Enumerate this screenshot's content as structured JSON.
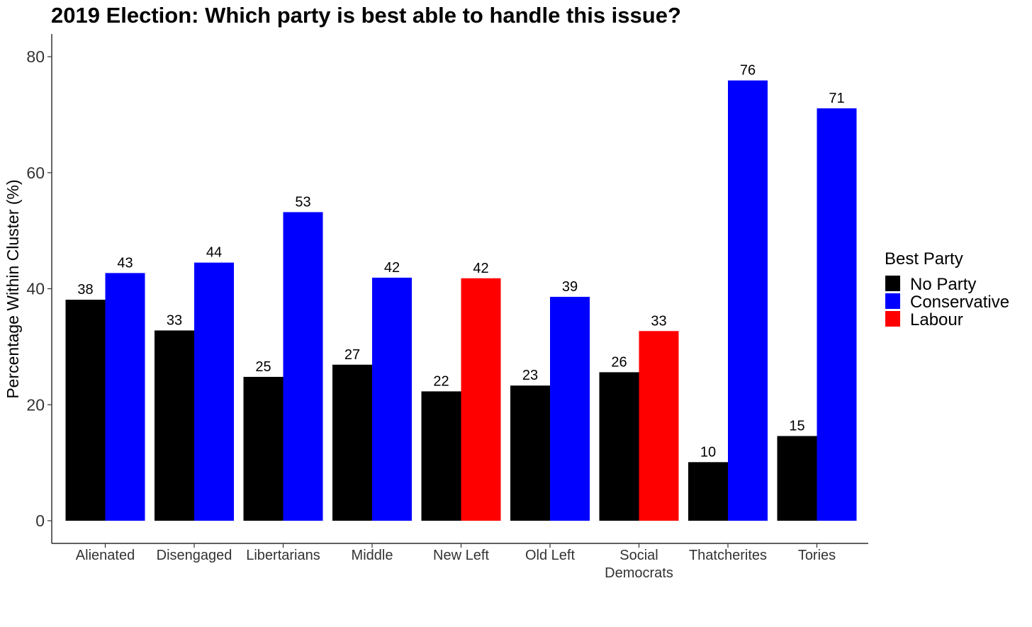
{
  "chart_data": {
    "type": "bar",
    "title": "2019 Election: Which party is best able to handle this issue?",
    "xlabel": "",
    "ylabel": "Percentage Within Cluster (%)",
    "ylim": [
      0,
      84
    ],
    "yticks": [
      "0",
      "20",
      "40",
      "60",
      "80"
    ],
    "grid": false,
    "legend_position": "right",
    "legend_title": "Best Party",
    "colors": {
      "No Party": "#000000",
      "Conservative": "#0000ff",
      "Labour": "#ff0000"
    },
    "legend": [
      {
        "name": "No Party",
        "color": "#000000"
      },
      {
        "name": "Conservative",
        "color": "#0000ff"
      },
      {
        "name": "Labour",
        "color": "#ff0000"
      }
    ],
    "categories": [
      "Alienated",
      "Disengaged",
      "Libertarians",
      "Middle",
      "New Left",
      "Old Left",
      "Social Democrats",
      "Thatcherites",
      "Tories"
    ],
    "category_lines": [
      [
        "Alienated"
      ],
      [
        "Disengaged"
      ],
      [
        "Libertarians"
      ],
      [
        "Middle"
      ],
      [
        "New Left"
      ],
      [
        "Old Left"
      ],
      [
        "Social",
        "Democrats"
      ],
      [
        "Thatcherites"
      ],
      [
        "Tories"
      ]
    ],
    "groups": [
      {
        "category": "Alienated",
        "bars": [
          {
            "party": "No Party",
            "value": 38.1,
            "label": "38"
          },
          {
            "party": "Conservative",
            "value": 42.7,
            "label": "43"
          }
        ]
      },
      {
        "category": "Disengaged",
        "bars": [
          {
            "party": "No Party",
            "value": 32.8,
            "label": "33"
          },
          {
            "party": "Conservative",
            "value": 44.5,
            "label": "44"
          }
        ]
      },
      {
        "category": "Libertarians",
        "bars": [
          {
            "party": "No Party",
            "value": 24.8,
            "label": "25"
          },
          {
            "party": "Conservative",
            "value": 53.2,
            "label": "53"
          }
        ]
      },
      {
        "category": "Middle",
        "bars": [
          {
            "party": "No Party",
            "value": 26.9,
            "label": "27"
          },
          {
            "party": "Conservative",
            "value": 41.9,
            "label": "42"
          }
        ]
      },
      {
        "category": "New Left",
        "bars": [
          {
            "party": "No Party",
            "value": 22.3,
            "label": "22"
          },
          {
            "party": "Labour",
            "value": 41.8,
            "label": "42"
          }
        ]
      },
      {
        "category": "Old Left",
        "bars": [
          {
            "party": "No Party",
            "value": 23.3,
            "label": "23"
          },
          {
            "party": "Conservative",
            "value": 38.6,
            "label": "39"
          }
        ]
      },
      {
        "category": "Social Democrats",
        "bars": [
          {
            "party": "No Party",
            "value": 25.6,
            "label": "26"
          },
          {
            "party": "Labour",
            "value": 32.7,
            "label": "33"
          }
        ]
      },
      {
        "category": "Thatcherites",
        "bars": [
          {
            "party": "No Party",
            "value": 10.1,
            "label": "10"
          },
          {
            "party": "Conservative",
            "value": 75.9,
            "label": "76"
          }
        ]
      },
      {
        "category": "Tories",
        "bars": [
          {
            "party": "No Party",
            "value": 14.6,
            "label": "15"
          },
          {
            "party": "Conservative",
            "value": 71.1,
            "label": "71"
          }
        ]
      }
    ]
  }
}
